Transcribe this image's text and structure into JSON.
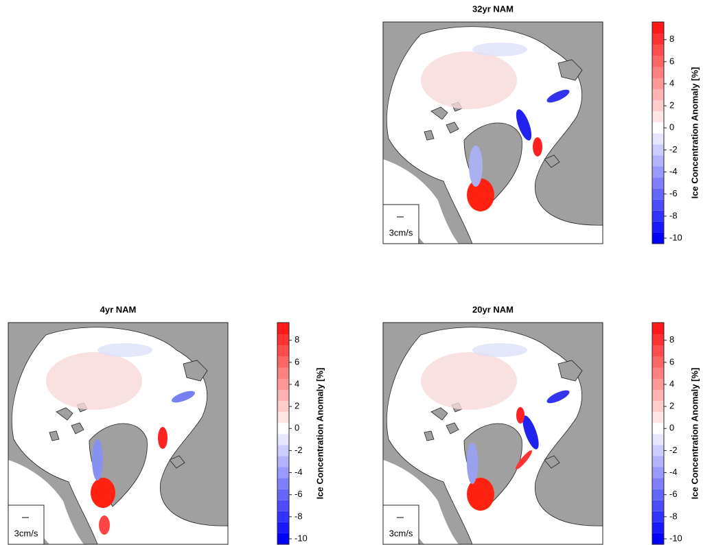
{
  "panels": [
    {
      "title": "32yr NAM",
      "scale_label": "3cm/s",
      "colorbar": {
        "label": "Ice Concentration Anomaly [%]",
        "clim": [
          -10.5,
          9.6
        ],
        "ticks": [
          8,
          6,
          4,
          2,
          0,
          -2,
          -4,
          -6,
          -8,
          -10
        ]
      }
    },
    {
      "title": "4yr NAM",
      "scale_label": "3cm/s",
      "colorbar": {
        "label": "Ice Concentration Anomaly [%]",
        "clim": [
          -10.5,
          9.6
        ],
        "ticks": [
          8,
          6,
          4,
          2,
          0,
          -2,
          -4,
          -6,
          -8,
          -10
        ]
      }
    },
    {
      "title": "20yr NAM",
      "scale_label": "3cm/s",
      "colorbar": {
        "label": "Ice Concentration Anomaly [%]",
        "clim": [
          -10.5,
          9.6
        ],
        "ticks": [
          8,
          6,
          4,
          2,
          0,
          -2,
          -4,
          -6,
          -8,
          -10
        ]
      }
    }
  ]
}
